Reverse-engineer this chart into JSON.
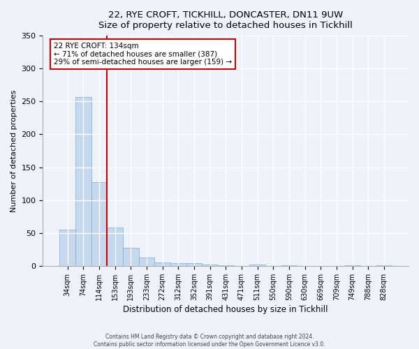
{
  "title": "22, RYE CROFT, TICKHILL, DONCASTER, DN11 9UW",
  "subtitle": "Size of property relative to detached houses in Tickhill",
  "xlabel": "Distribution of detached houses by size in Tickhill",
  "ylabel": "Number of detached properties",
  "bar_labels": [
    "34sqm",
    "74sqm",
    "114sqm",
    "153sqm",
    "193sqm",
    "233sqm",
    "272sqm",
    "312sqm",
    "352sqm",
    "391sqm",
    "431sqm",
    "471sqm",
    "511sqm",
    "550sqm",
    "590sqm",
    "630sqm",
    "669sqm",
    "709sqm",
    "749sqm",
    "788sqm",
    "828sqm"
  ],
  "bar_values": [
    55,
    257,
    127,
    58,
    27,
    13,
    5,
    4,
    4,
    2,
    1,
    0,
    2,
    0,
    1,
    0,
    0,
    0,
    1,
    0,
    1
  ],
  "bar_color": "#c5d8ee",
  "bar_edge_color": "#7aadd4",
  "ylim": [
    0,
    350
  ],
  "yticks": [
    0,
    50,
    100,
    150,
    200,
    250,
    300,
    350
  ],
  "vline_x_index": 2.5,
  "vline_color": "#cc0000",
  "annotation_title": "22 RYE CROFT: 134sqm",
  "annotation_line1": "← 71% of detached houses are smaller (387)",
  "annotation_line2": "29% of semi-detached houses are larger (159) →",
  "annotation_box_color": "#cc0000",
  "footer_line1": "Contains HM Land Registry data © Crown copyright and database right 2024.",
  "footer_line2": "Contains public sector information licensed under the Open Government Licence v3.0.",
  "background_color": "#eef2fb",
  "plot_bg_color": "#eef2fb"
}
